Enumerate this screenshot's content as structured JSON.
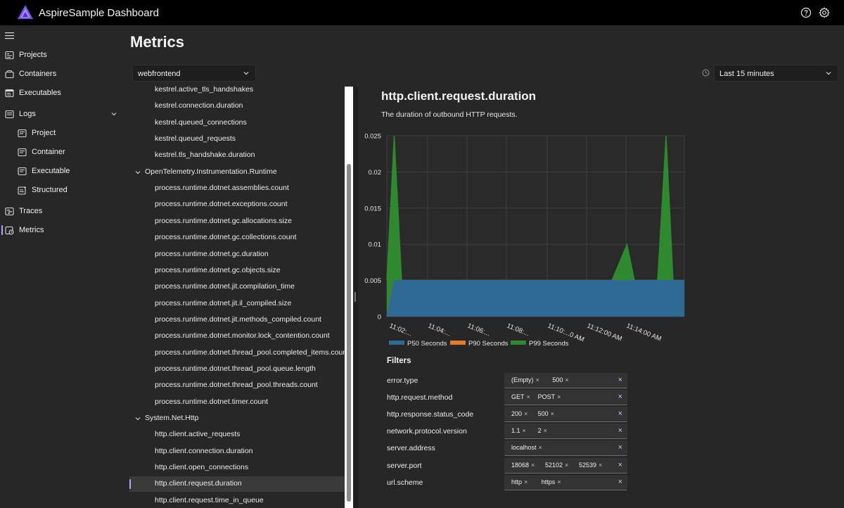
{
  "app": {
    "title": "AspireSample Dashboard"
  },
  "sidebar": {
    "items": [
      {
        "label": "Projects",
        "icon": "projects-icon"
      },
      {
        "label": "Containers",
        "icon": "containers-icon"
      },
      {
        "label": "Executables",
        "icon": "executables-icon"
      },
      {
        "label": "Logs",
        "icon": "logs-icon"
      },
      {
        "label": "Project",
        "icon": "project-log-icon"
      },
      {
        "label": "Container",
        "icon": "container-log-icon"
      },
      {
        "label": "Executable",
        "icon": "executable-log-icon"
      },
      {
        "label": "Structured",
        "icon": "structured-log-icon"
      },
      {
        "label": "Traces",
        "icon": "traces-icon"
      },
      {
        "label": "Metrics",
        "icon": "metrics-icon"
      }
    ]
  },
  "page": {
    "title": "Metrics"
  },
  "resource_select": {
    "value": "webfrontend"
  },
  "time_select": {
    "value": "Last 15 minutes"
  },
  "tree": {
    "rows": [
      {
        "text": "kestrel.active_tls_handshakes",
        "group": false
      },
      {
        "text": "kestrel.connection.duration",
        "group": false
      },
      {
        "text": "kestrel.queued_connections",
        "group": false
      },
      {
        "text": "kestrel.queued_requests",
        "group": false
      },
      {
        "text": "kestrel.tls_handshake.duration",
        "group": false
      },
      {
        "text": "OpenTelemetry.Instrumentation.Runtime",
        "group": true
      },
      {
        "text": "process.runtime.dotnet.assemblies.count",
        "group": false
      },
      {
        "text": "process.runtime.dotnet.exceptions.count",
        "group": false
      },
      {
        "text": "process.runtime.dotnet.gc.allocations.size",
        "group": false
      },
      {
        "text": "process.runtime.dotnet.gc.collections.count",
        "group": false
      },
      {
        "text": "process.runtime.dotnet.gc.duration",
        "group": false
      },
      {
        "text": "process.runtime.dotnet.gc.objects.size",
        "group": false
      },
      {
        "text": "process.runtime.dotnet.jit.compilation_time",
        "group": false
      },
      {
        "text": "process.runtime.dotnet.jit.il_compiled.size",
        "group": false
      },
      {
        "text": "process.runtime.dotnet.jit.methods_compiled.count",
        "group": false
      },
      {
        "text": "process.runtime.dotnet.monitor.lock_contention.count",
        "group": false
      },
      {
        "text": "process.runtime.dotnet.thread_pool.completed_items.count",
        "group": false
      },
      {
        "text": "process.runtime.dotnet.thread_pool.queue.length",
        "group": false
      },
      {
        "text": "process.runtime.dotnet.thread_pool.threads.count",
        "group": false
      },
      {
        "text": "process.runtime.dotnet.timer.count",
        "group": false
      },
      {
        "text": "System.Net.Http",
        "group": true
      },
      {
        "text": "http.client.active_requests",
        "group": false
      },
      {
        "text": "http.client.connection.duration",
        "group": false
      },
      {
        "text": "http.client.open_connections",
        "group": false
      },
      {
        "text": "http.client.request.duration",
        "group": false,
        "selected": true
      },
      {
        "text": "http.client.request.time_in_queue",
        "group": false
      }
    ]
  },
  "metric": {
    "title": "http.client.request.duration",
    "description": "The duration of outbound HTTP requests."
  },
  "chart_data": {
    "type": "area",
    "x": [
      "11:02",
      "11:02",
      "11:03",
      "11:04",
      "11:06",
      "11:08",
      "11:10",
      "11:12",
      "11:13",
      "11:13",
      "11:14",
      "11:14",
      "11:14",
      "11:15",
      "11:15"
    ],
    "series": [
      {
        "name": "P50 Seconds",
        "color": "#2f6a94",
        "values": [
          0,
          0.005,
          0.005,
          0.005,
          0.005,
          0.005,
          0.005,
          0.005,
          0.005,
          0.005,
          0.005,
          0.005,
          0.005,
          0.005,
          0.005
        ]
      },
      {
        "name": "P90 Seconds",
        "color": "#e07d2a",
        "values": [
          0,
          0.005,
          0.005,
          0.005,
          0.005,
          0.005,
          0.005,
          0.005,
          0.005,
          0.005,
          0.005,
          0.005,
          0.005,
          0.005,
          0.005
        ]
      },
      {
        "name": "P99 Seconds",
        "color": "#2f8a2f",
        "values": [
          0.005,
          0.025,
          0.005,
          0.005,
          0.005,
          0.005,
          0.005,
          0.005,
          0.01,
          0.005,
          0.005,
          0.005,
          0.025,
          0.005,
          0.005
        ]
      }
    ],
    "ylim": [
      0,
      0.025
    ],
    "yticks": [
      "0.025",
      "0.02",
      "0.015",
      "0.01",
      "0.005",
      "0"
    ],
    "xticklabels": [
      "11:02:...",
      "11:04:...",
      "11:06:...",
      "11:08:...",
      "11:10:...0 AM",
      "11:12:00 AM",
      "11:14:00 AM"
    ],
    "legend": "bottom-left",
    "grid": true
  },
  "filters": {
    "title": "Filters",
    "rows": [
      {
        "name": "error.type",
        "values": [
          "(Empty)",
          "500"
        ]
      },
      {
        "name": "http.request.method",
        "values": [
          "GET",
          "POST"
        ]
      },
      {
        "name": "http.response.status_code",
        "values": [
          "200",
          "500"
        ]
      },
      {
        "name": "network.protocol.version",
        "values": [
          "1.1",
          "2"
        ]
      },
      {
        "name": "server.address",
        "values": [
          "localhost"
        ]
      },
      {
        "name": "server.port",
        "values": [
          "18068",
          "52102",
          "52539"
        ]
      },
      {
        "name": "url.scheme",
        "values": [
          "http",
          "https"
        ]
      }
    ],
    "chip_remove": "×",
    "clear_all": "×"
  }
}
